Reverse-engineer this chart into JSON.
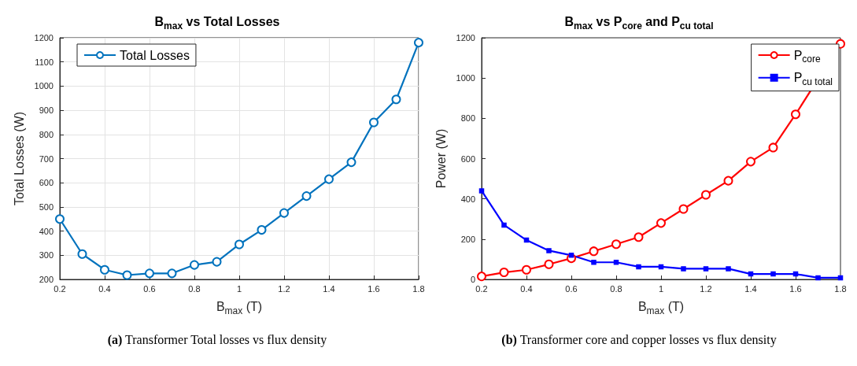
{
  "chart_data": [
    {
      "type": "line",
      "title": "B$_{max}$ vs Total Losses",
      "xlabel": "B$_{max}$ (T)",
      "ylabel": "Total Losses (W)",
      "x": [
        0.2,
        0.3,
        0.4,
        0.5,
        0.6,
        0.7,
        0.8,
        0.9,
        1.0,
        1.1,
        1.2,
        1.3,
        1.4,
        1.5,
        1.6,
        1.7,
        1.8
      ],
      "series": [
        {
          "name": "Total Losses",
          "color": "#0072bd",
          "marker": "circle",
          "values": [
            450,
            305,
            240,
            218,
            225,
            225,
            260,
            273,
            345,
            405,
            475,
            545,
            615,
            685,
            850,
            945,
            1180
          ]
        }
      ],
      "xlim": [
        0.2,
        1.8
      ],
      "xticks": [
        0.2,
        0.4,
        0.6,
        0.8,
        1,
        1.2,
        1.4,
        1.6,
        1.8
      ],
      "ylim": [
        200,
        1200
      ],
      "yticks": [
        200,
        300,
        400,
        500,
        600,
        700,
        800,
        900,
        1000,
        1100,
        1200
      ],
      "grid": true,
      "legend": "top left",
      "annotations": [
        "(a) Transformer Total losses vs flux density"
      ]
    },
    {
      "type": "line",
      "title": "B$_{max}$ vs P$_{core}$ and P$_{cu total}$",
      "xlabel": "B$_{max}$ (T)",
      "ylabel": "Power (W)",
      "x": [
        0.2,
        0.3,
        0.4,
        0.5,
        0.6,
        0.7,
        0.8,
        0.9,
        1.0,
        1.1,
        1.2,
        1.3,
        1.4,
        1.5,
        1.6,
        1.7,
        1.8
      ],
      "series": [
        {
          "name": "P$_{core}$",
          "color": "#ff0000",
          "marker": "circle",
          "values": [
            15,
            35,
            48,
            75,
            105,
            140,
            175,
            210,
            280,
            350,
            420,
            490,
            585,
            655,
            820,
            null,
            1170
          ]
        },
        {
          "name": "P$_{cu total}$",
          "color": "#0000ff",
          "marker": "square",
          "values": [
            440,
            270,
            195,
            143,
            120,
            85,
            85,
            63,
            63,
            53,
            53,
            53,
            27,
            27,
            27,
            8,
            8
          ]
        }
      ],
      "xlim": [
        0.2,
        1.8
      ],
      "xticks": [
        0.2,
        0.4,
        0.6,
        0.8,
        1,
        1.2,
        1.4,
        1.6,
        1.8
      ],
      "ylim": [
        0,
        1200
      ],
      "yticks": [
        0,
        200,
        400,
        600,
        800,
        1000,
        1200
      ],
      "grid": false,
      "legend": "top right",
      "annotations": [
        "(b) Transformer core and copper losses vs flux density"
      ]
    }
  ]
}
